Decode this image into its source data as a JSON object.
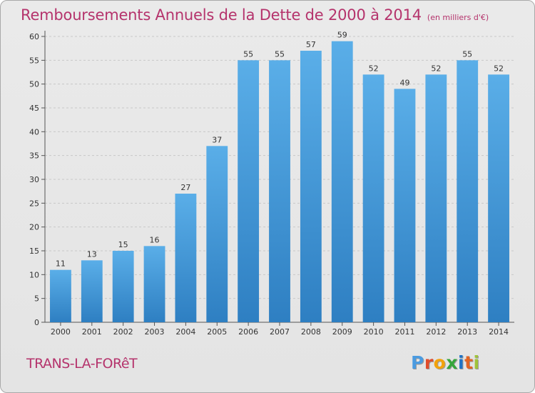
{
  "header": {
    "title": "Remboursements Annuels de la Dette de 2000 à 2014",
    "unit": "(en milliers d'€)"
  },
  "footer": {
    "city": "TRANS-LA-FORêT",
    "logo": [
      "P",
      "r",
      "o",
      "x",
      "i",
      "t",
      "i"
    ]
  },
  "colors": {
    "bar": "#3f92d2",
    "title": "#b5336c",
    "logo": [
      "#4b9be0",
      "#e04c2b",
      "#f2a20c",
      "#36a53c",
      "#1f73c6",
      "#e26424",
      "#9fc33a"
    ]
  },
  "chart_data": {
    "type": "bar",
    "title": "Remboursements Annuels de la Dette de 2000 à 2014",
    "ylabel": "en milliers d'€",
    "xlabel": "",
    "categories": [
      "2000",
      "2001",
      "2002",
      "2003",
      "2004",
      "2005",
      "2006",
      "2007",
      "2008",
      "2009",
      "2010",
      "2011",
      "2012",
      "2013",
      "2014"
    ],
    "values": [
      11,
      13,
      15,
      16,
      27,
      37,
      55,
      55,
      57,
      59,
      52,
      49,
      52,
      55,
      52
    ],
    "ylim": [
      0,
      60
    ],
    "yticks": [
      0,
      5,
      10,
      15,
      20,
      25,
      30,
      35,
      40,
      45,
      50,
      55,
      60
    ],
    "grid": true
  }
}
